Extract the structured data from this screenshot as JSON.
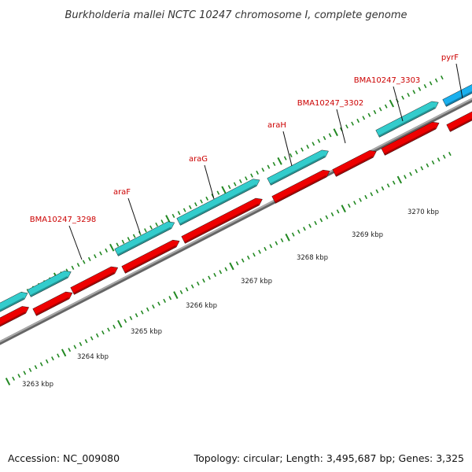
{
  "title": "Burkholderia mallei NCTC 10247 chromosome I, complete genome",
  "footer": {
    "accession": "Accession: NC_009080",
    "stats": "Topology: circular; Length: 3,495,687 bp; Genes: 3,325"
  },
  "colors": {
    "forward_gene": "#33cccc",
    "reverse_gene": "#ee0000",
    "highlight_gene": "#1ab0ee",
    "backbone": "#999999",
    "tick": "#228822",
    "label": "#cc0000"
  },
  "gene_labels": [
    "BMA10247_3298",
    "araF",
    "araG",
    "araH",
    "BMA10247_3302",
    "BMA10247_3303",
    "pyrF"
  ],
  "scale_labels": [
    "3263 kbp",
    "3264 kbp",
    "3265 kbp",
    "3266 kbp",
    "3267 kbp",
    "3268 kbp",
    "3269 kbp",
    "3270 kbp"
  ]
}
